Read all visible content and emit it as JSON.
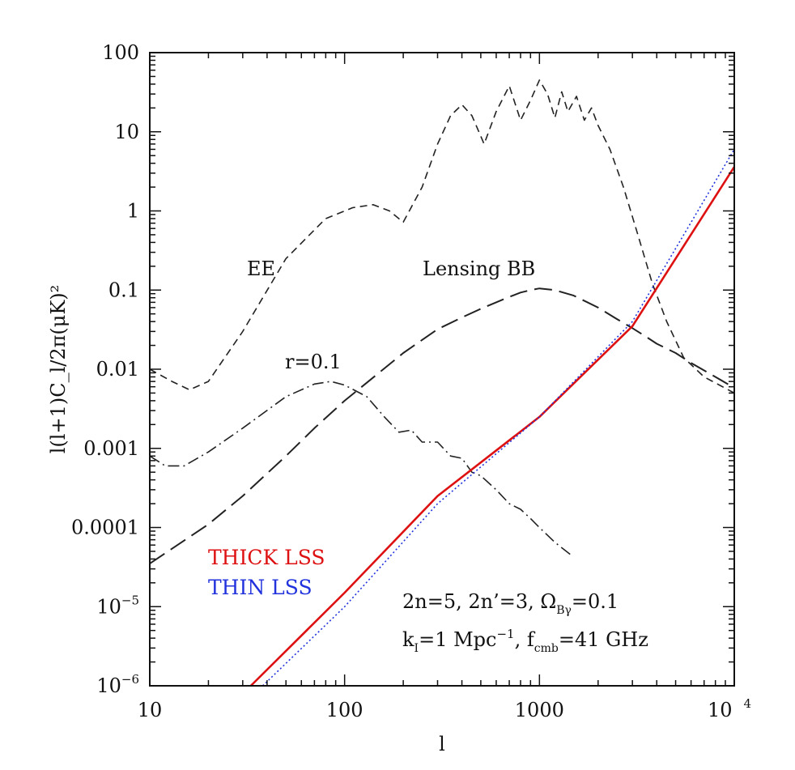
{
  "chart_data": {
    "type": "line",
    "xscale": "log",
    "yscale": "log",
    "xlim": [
      10,
      10000
    ],
    "ylim": [
      1e-06,
      100
    ],
    "xlabel": "l",
    "ylabel": "l(l+1)C_l/2π(μK)²",
    "x_ticks": [
      {
        "value": 10,
        "label": "10"
      },
      {
        "value": 100,
        "label": "100"
      },
      {
        "value": 1000,
        "label": "1000"
      },
      {
        "value": 10000,
        "label": "10",
        "sup": "4"
      }
    ],
    "y_ticks": [
      {
        "value": 100,
        "label": "100"
      },
      {
        "value": 10,
        "label": "10"
      },
      {
        "value": 1,
        "label": "1"
      },
      {
        "value": 0.1,
        "label": "0.1"
      },
      {
        "value": 0.01,
        "label": "0.01"
      },
      {
        "value": 0.001,
        "label": "0.001"
      },
      {
        "value": 0.0001,
        "label": "0.0001"
      },
      {
        "value": 1e-05,
        "label": "10",
        "sup": "−5"
      },
      {
        "value": 1e-06,
        "label": "10",
        "sup": "−6"
      }
    ],
    "series": [
      {
        "name": "EE",
        "style": "short-dash",
        "color": "#222222",
        "x": [
          10,
          13,
          16,
          20,
          30,
          50,
          80,
          110,
          140,
          170,
          200,
          250,
          300,
          350,
          400,
          450,
          520,
          600,
          700,
          800,
          900,
          1000,
          1100,
          1200,
          1300,
          1400,
          1550,
          1700,
          1850,
          2000,
          2300,
          2700,
          3200,
          3800,
          4500,
          5500,
          7000,
          10000
        ],
        "y": [
          0.01,
          0.007,
          0.0055,
          0.007,
          0.03,
          0.25,
          0.8,
          1.1,
          1.2,
          1.0,
          0.72,
          2.0,
          7,
          16,
          22,
          16,
          7,
          18,
          38,
          14,
          25,
          45,
          30,
          15,
          32,
          18,
          28,
          14,
          20,
          12,
          6,
          2.0,
          0.5,
          0.12,
          0.04,
          0.014,
          0.008,
          0.005
        ]
      },
      {
        "name": "Lensing BB",
        "style": "long-dash",
        "color": "#222222",
        "x": [
          10,
          20,
          30,
          50,
          70,
          100,
          150,
          200,
          300,
          400,
          500,
          600,
          700,
          800,
          900,
          1000,
          1200,
          1500,
          2000,
          2500,
          3000,
          3500,
          4000,
          5000,
          6000,
          8000,
          10000
        ],
        "y": [
          3.5e-05,
          0.00011,
          0.00025,
          0.0008,
          0.0018,
          0.004,
          0.009,
          0.016,
          0.032,
          0.045,
          0.058,
          0.07,
          0.082,
          0.093,
          0.1,
          0.105,
          0.1,
          0.085,
          0.06,
          0.043,
          0.033,
          0.026,
          0.021,
          0.016,
          0.012,
          0.008,
          0.0058
        ]
      },
      {
        "name": "r=0.1",
        "style": "dash-dot",
        "color": "#222222",
        "x": [
          10,
          12,
          15,
          20,
          30,
          50,
          70,
          85,
          100,
          130,
          160,
          190,
          220,
          250,
          300,
          350,
          400,
          450,
          500,
          600,
          700,
          800,
          900,
          1000,
          1200,
          1450
        ],
        "y": [
          0.0008,
          0.0006,
          0.0006,
          0.0009,
          0.0018,
          0.0045,
          0.0065,
          0.007,
          0.0063,
          0.0045,
          0.0025,
          0.0016,
          0.0017,
          0.0012,
          0.0012,
          0.0008,
          0.00075,
          0.0005,
          0.00045,
          0.0003,
          0.0002,
          0.00017,
          0.00013,
          0.0001,
          6.5e-05,
          4.5e-05
        ]
      },
      {
        "name": "THICK LSS",
        "style": "solid",
        "color": "#dd1111",
        "x": [
          33,
          100,
          300,
          1000,
          3000,
          10000
        ],
        "y": [
          1e-06,
          1.5e-05,
          0.00025,
          0.0025,
          0.035,
          3.6
        ]
      },
      {
        "name": "THIN LSS",
        "style": "dotted",
        "color": "#2233dd",
        "x": [
          38,
          100,
          300,
          1000,
          3000,
          10000
        ],
        "y": [
          1e-06,
          1e-05,
          0.0002,
          0.0025,
          0.04,
          6
        ]
      }
    ],
    "annotations": {
      "ee": "EE",
      "lensing": "Lensing BB",
      "r": "r=0.1",
      "params1_a": "2n=5, 2n’=3, Ω",
      "params1_sub": "Bγ",
      "params1_b": "=0.1",
      "params2_a": "k",
      "params2_sub1": "I",
      "params2_b": "=1 Mpc",
      "params2_sup": "−1",
      "params2_c": ", f",
      "params2_sub2": "cmb",
      "params2_d": "=41 GHz"
    },
    "legend": [
      {
        "label": "THICK LSS",
        "color": "#dd1111"
      },
      {
        "label": "THIN LSS",
        "color": "#2233dd"
      }
    ]
  }
}
